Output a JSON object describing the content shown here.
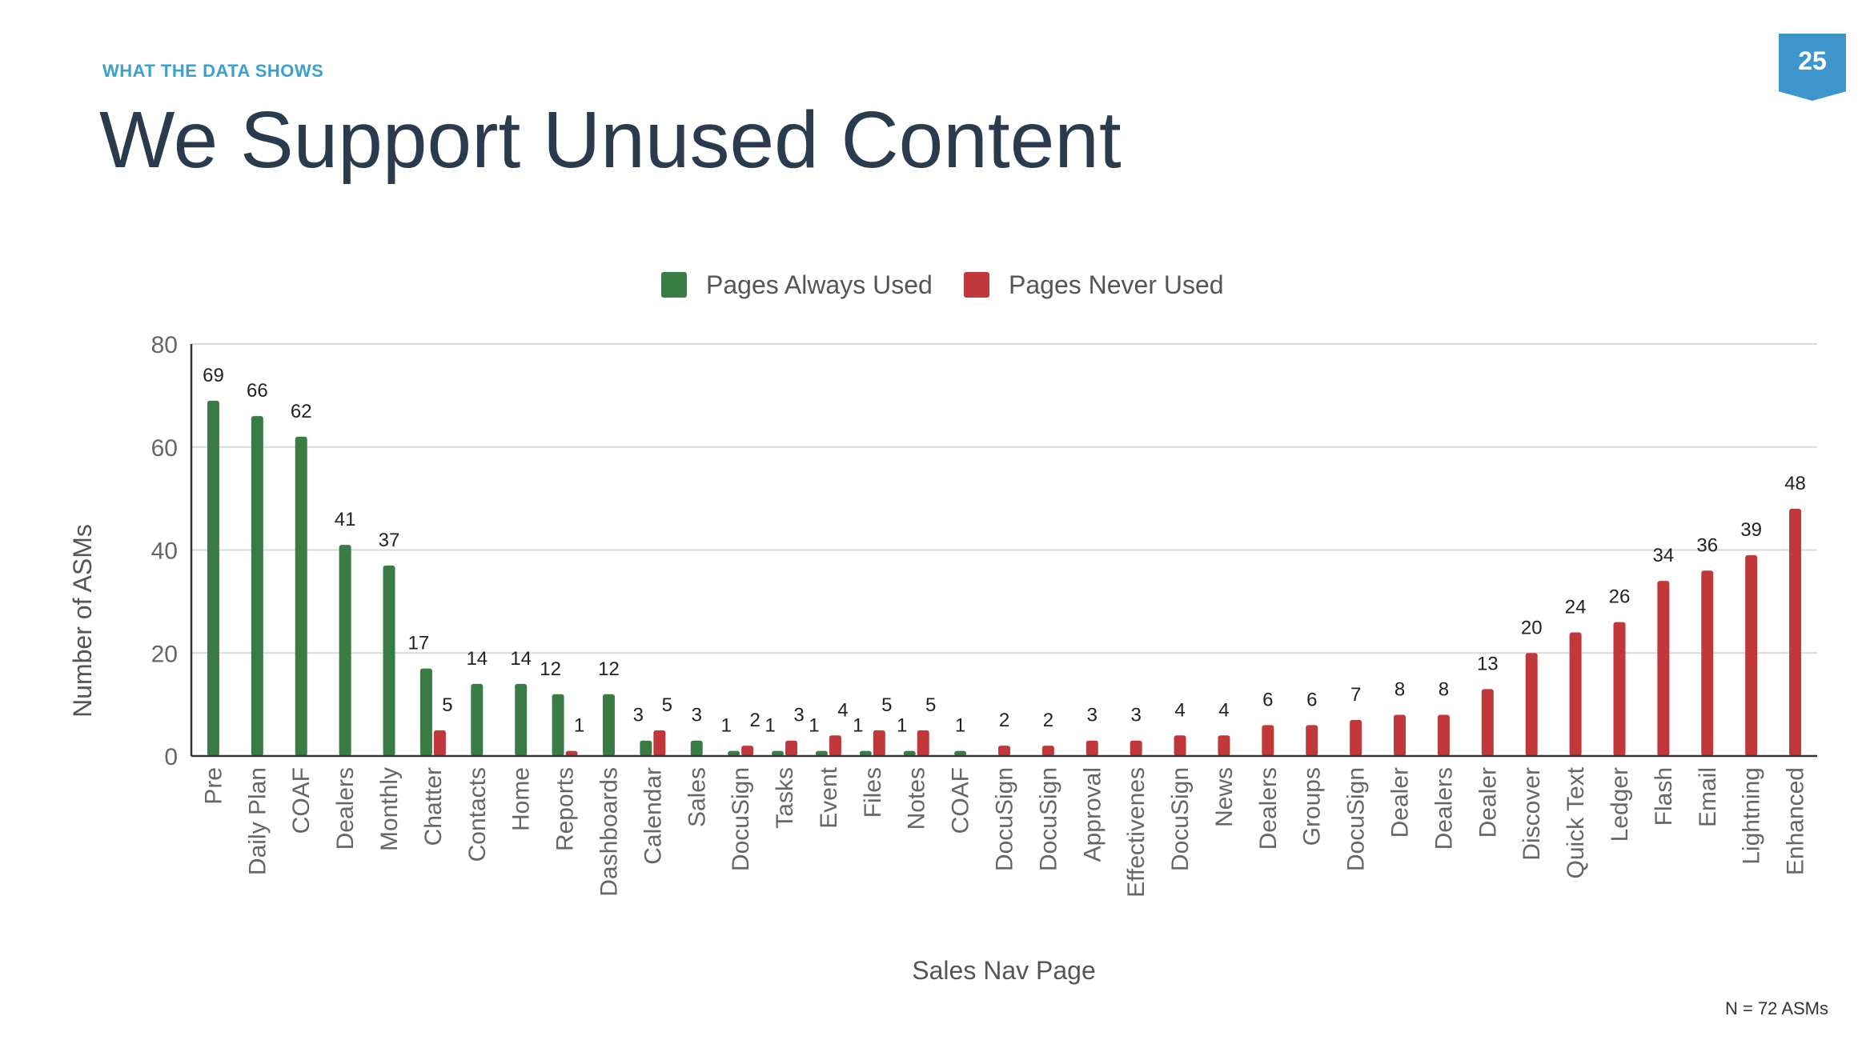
{
  "header": {
    "eyebrow": "WHAT THE DATA SHOWS",
    "title": "We Support Unused Content",
    "page_number": "25"
  },
  "footnote": "N = 72 ASMs",
  "colors": {
    "always_used": "#3a7d44",
    "never_used": "#c0383a",
    "grid": "#d9d9d9",
    "axis_text": "#666666",
    "eyebrow": "#3aa0cf",
    "title": "#2a3b4d",
    "badge": "#3d95cc"
  },
  "chart_data": {
    "type": "bar",
    "xlabel": "Sales Nav Page",
    "ylabel": "Number of ASMs",
    "ylim": [
      0,
      80
    ],
    "yticks": [
      0,
      20,
      40,
      60,
      80
    ],
    "grid": true,
    "legend_position": "top-center",
    "categories": [
      "Pre",
      "Daily Plan",
      "COAF",
      "Dealers",
      "Monthly",
      "Chatter",
      "Contacts",
      "Home",
      "Reports",
      "Dashboards",
      "Calendar",
      "Sales",
      "DocuSign",
      "Tasks",
      "Event",
      "Files",
      "Notes",
      "COAF",
      "DocuSign",
      "DocuSign",
      "Approval",
      "Effectivenes",
      "DocuSign",
      "News",
      "Dealers",
      "Groups",
      "DocuSign",
      "Dealer",
      "Dealers",
      "Dealer",
      "Discover",
      "Quick Text",
      "Ledger",
      "Flash",
      "Email",
      "Lightning",
      "Enhanced"
    ],
    "series": [
      {
        "name": "Pages Always Used",
        "values": [
          69,
          66,
          62,
          41,
          37,
          17,
          14,
          14,
          12,
          12,
          3,
          3,
          1,
          1,
          1,
          1,
          1,
          1,
          null,
          null,
          null,
          null,
          null,
          null,
          null,
          null,
          null,
          null,
          null,
          null,
          null,
          null,
          null,
          null,
          null,
          null,
          null
        ]
      },
      {
        "name": "Pages Never Used",
        "values": [
          null,
          null,
          null,
          null,
          null,
          5,
          null,
          null,
          1,
          null,
          5,
          null,
          2,
          3,
          4,
          5,
          5,
          null,
          2,
          2,
          3,
          3,
          4,
          4,
          6,
          6,
          7,
          8,
          8,
          13,
          20,
          24,
          26,
          34,
          36,
          39,
          48
        ]
      }
    ]
  }
}
